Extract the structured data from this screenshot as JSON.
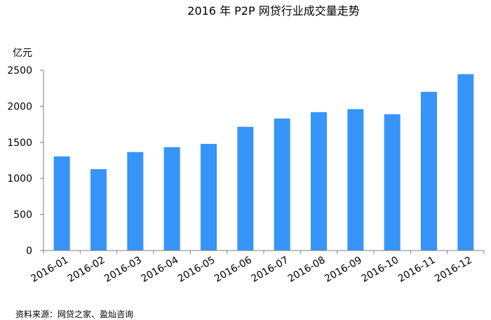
{
  "chart_data": {
    "type": "bar",
    "title": "2016 年 P2P 网贷行业成交量走势",
    "ylabel": "亿元",
    "xlabel": "",
    "categories": [
      "2016-01",
      "2016-02",
      "2016-03",
      "2016-04",
      "2016-05",
      "2016-06",
      "2016-07",
      "2016-08",
      "2016-09",
      "2016-10",
      "2016-11",
      "2016-12"
    ],
    "values": [
      1305,
      1128,
      1365,
      1433,
      1478,
      1715,
      1830,
      1918,
      1960,
      1890,
      2200,
      2445
    ],
    "ylim": [
      0,
      2500
    ],
    "yticks": [
      "0",
      "500",
      "1000",
      "1500",
      "2000",
      "2500"
    ],
    "ytick_values": [
      0,
      500,
      1000,
      1500,
      2000,
      2500
    ],
    "grid": false,
    "legend": "none",
    "bar_color": "#3794f9",
    "axis_color": "#808080",
    "source": "资料来源：网贷之家、盈灿咨询"
  }
}
